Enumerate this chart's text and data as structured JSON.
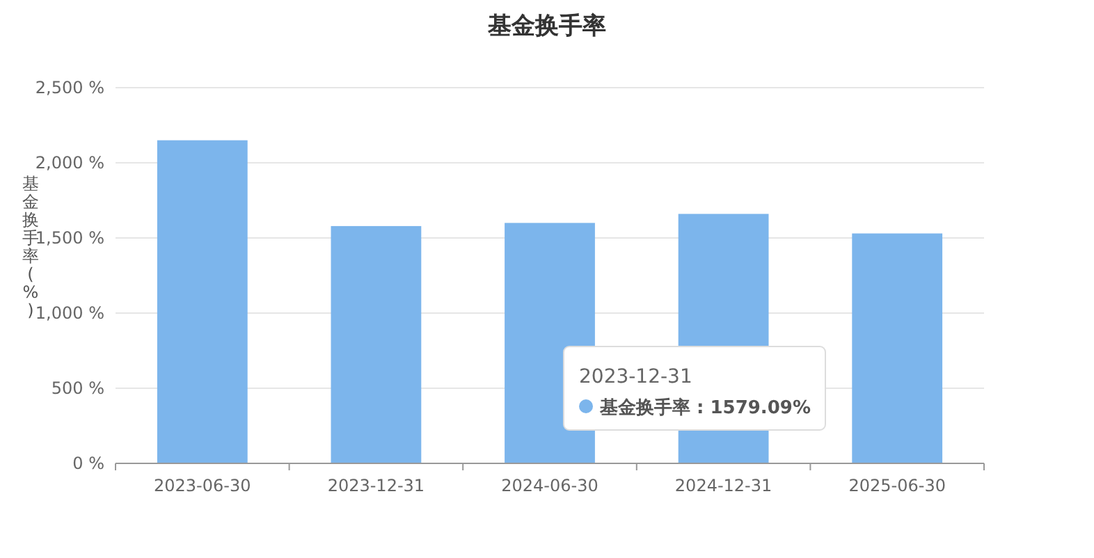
{
  "chart_data": {
    "type": "bar",
    "title": "基金换手率",
    "ylabel": "基金换手率(%)",
    "categories": [
      "2023-06-30",
      "2023-12-31",
      "2024-06-30",
      "2024-12-31",
      "2025-06-30"
    ],
    "values": [
      2150,
      1579.09,
      1600,
      1660,
      1530
    ],
    "color": "#7cb5ec",
    "ylim": [
      0,
      2500
    ],
    "yticks": [
      {
        "value": 0,
        "label": "0 %"
      },
      {
        "value": 500,
        "label": "500 %"
      },
      {
        "value": 1000,
        "label": "1,000 %"
      },
      {
        "value": 1500,
        "label": "1,500 %"
      },
      {
        "value": 2000,
        "label": "2,000 %"
      },
      {
        "value": 2500,
        "label": "2,500 %"
      }
    ],
    "grid": "y",
    "annotations": [
      "2023-12-31",
      "基金换手率 : 1579.09%"
    ]
  }
}
